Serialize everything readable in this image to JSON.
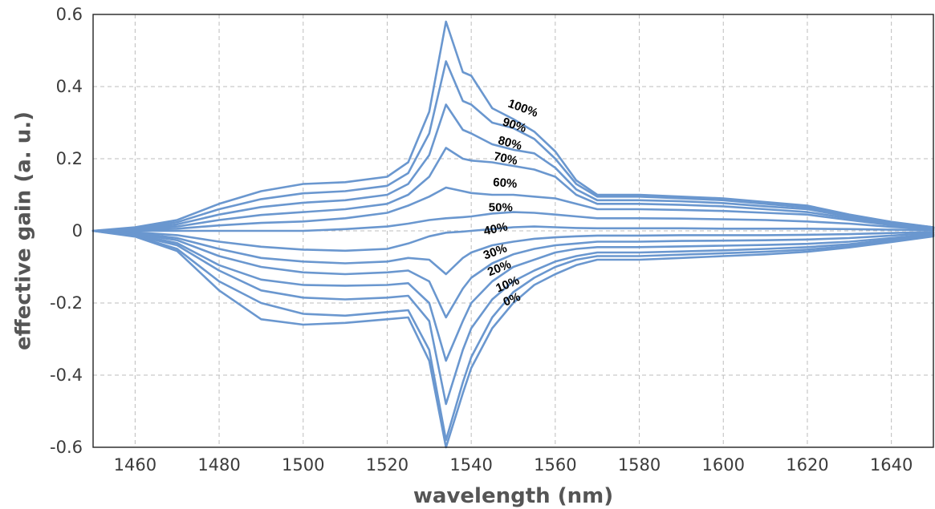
{
  "chart_data": {
    "type": "line",
    "title": "",
    "xlabel": "wavelength (nm)",
    "ylabel": "effective gain (a. u.)",
    "xlim": [
      1450,
      1650
    ],
    "ylim": [
      -0.6,
      0.6
    ],
    "xticks": [
      1460,
      1480,
      1500,
      1520,
      1540,
      1560,
      1580,
      1600,
      1620,
      1640
    ],
    "yticks": [
      -0.6,
      -0.4,
      -0.2,
      0,
      0.2,
      0.4,
      0.6
    ],
    "ytick_labels": [
      "-0.6",
      "-0.4",
      "-0.2",
      "0",
      "0.2",
      "0.4",
      "0.6"
    ],
    "grid": true,
    "line_color": "#6a97cf",
    "x": [
      1450,
      1460,
      1470,
      1480,
      1490,
      1500,
      1510,
      1520,
      1525,
      1530,
      1534,
      1538,
      1540,
      1545,
      1550,
      1555,
      1560,
      1565,
      1570,
      1580,
      1590,
      1600,
      1610,
      1620,
      1630,
      1640,
      1650
    ],
    "series": [
      {
        "name": "100%",
        "values": [
          0.0,
          0.01,
          0.03,
          0.075,
          0.11,
          0.13,
          0.135,
          0.15,
          0.19,
          0.33,
          0.58,
          0.44,
          0.43,
          0.34,
          0.31,
          0.275,
          0.22,
          0.14,
          0.1,
          0.1,
          0.095,
          0.09,
          0.08,
          0.07,
          0.045,
          0.025,
          0.01
        ]
      },
      {
        "name": "90%",
        "values": [
          0.0,
          0.008,
          0.024,
          0.06,
          0.088,
          0.104,
          0.11,
          0.125,
          0.16,
          0.27,
          0.47,
          0.36,
          0.35,
          0.3,
          0.285,
          0.255,
          0.2,
          0.13,
          0.095,
          0.095,
          0.09,
          0.085,
          0.075,
          0.065,
          0.042,
          0.023,
          0.01
        ]
      },
      {
        "name": "80%",
        "values": [
          0.0,
          0.006,
          0.018,
          0.045,
          0.066,
          0.078,
          0.085,
          0.1,
          0.13,
          0.21,
          0.35,
          0.28,
          0.27,
          0.24,
          0.225,
          0.215,
          0.175,
          0.115,
          0.085,
          0.085,
          0.082,
          0.077,
          0.068,
          0.06,
          0.039,
          0.021,
          0.009
        ]
      },
      {
        "name": "70%",
        "values": [
          0.0,
          0.004,
          0.012,
          0.03,
          0.044,
          0.052,
          0.06,
          0.075,
          0.1,
          0.15,
          0.23,
          0.2,
          0.195,
          0.19,
          0.18,
          0.17,
          0.15,
          0.1,
          0.075,
          0.075,
          0.072,
          0.068,
          0.06,
          0.052,
          0.035,
          0.019,
          0.008
        ]
      },
      {
        "name": "60%",
        "values": [
          0.0,
          0.002,
          0.006,
          0.015,
          0.022,
          0.026,
          0.035,
          0.05,
          0.07,
          0.095,
          0.12,
          0.11,
          0.105,
          0.1,
          0.1,
          0.095,
          0.09,
          0.075,
          0.06,
          0.06,
          0.058,
          0.055,
          0.05,
          0.045,
          0.03,
          0.016,
          0.007
        ]
      },
      {
        "name": "50%",
        "values": [
          0.0,
          0.0,
          0.0,
          0.0,
          0.0,
          0.0,
          0.005,
          0.012,
          0.02,
          0.03,
          0.035,
          0.038,
          0.04,
          0.048,
          0.052,
          0.05,
          0.045,
          0.04,
          0.035,
          0.035,
          0.034,
          0.032,
          0.03,
          0.026,
          0.02,
          0.011,
          0.005
        ]
      },
      {
        "name": "40%",
        "values": [
          0.0,
          -0.004,
          -0.012,
          -0.03,
          -0.044,
          -0.052,
          -0.055,
          -0.05,
          -0.035,
          -0.015,
          -0.005,
          -0.002,
          0.0,
          0.005,
          0.01,
          0.012,
          0.01,
          0.008,
          0.007,
          0.007,
          0.007,
          0.006,
          0.006,
          0.006,
          0.005,
          0.003,
          0.002
        ]
      },
      {
        "name": "30%",
        "values": [
          0.0,
          -0.006,
          -0.02,
          -0.05,
          -0.075,
          -0.085,
          -0.09,
          -0.085,
          -0.075,
          -0.08,
          -0.12,
          -0.075,
          -0.06,
          -0.04,
          -0.03,
          -0.022,
          -0.018,
          -0.015,
          -0.013,
          -0.013,
          -0.012,
          -0.012,
          -0.012,
          -0.011,
          -0.009,
          -0.006,
          -0.003
        ]
      },
      {
        "name": "20%",
        "values": [
          0.0,
          -0.008,
          -0.026,
          -0.07,
          -0.1,
          -0.115,
          -0.12,
          -0.115,
          -0.11,
          -0.14,
          -0.24,
          -0.16,
          -0.13,
          -0.09,
          -0.065,
          -0.05,
          -0.04,
          -0.035,
          -0.03,
          -0.03,
          -0.028,
          -0.027,
          -0.026,
          -0.024,
          -0.02,
          -0.013,
          -0.006
        ]
      },
      {
        "name": "10%",
        "values": [
          0.0,
          -0.01,
          -0.034,
          -0.095,
          -0.135,
          -0.15,
          -0.152,
          -0.15,
          -0.145,
          -0.2,
          -0.36,
          -0.25,
          -0.2,
          -0.14,
          -0.1,
          -0.08,
          -0.06,
          -0.05,
          -0.045,
          -0.045,
          -0.043,
          -0.041,
          -0.039,
          -0.036,
          -0.03,
          -0.02,
          -0.009
        ]
      },
      {
        "name": "0%",
        "values": [
          0.0,
          -0.012,
          -0.04,
          -0.11,
          -0.165,
          -0.185,
          -0.19,
          -0.185,
          -0.18,
          -0.25,
          -0.48,
          -0.33,
          -0.27,
          -0.19,
          -0.14,
          -0.11,
          -0.085,
          -0.07,
          -0.06,
          -0.06,
          -0.057,
          -0.054,
          -0.05,
          -0.045,
          -0.037,
          -0.024,
          -0.011
        ]
      },
      {
        "name": "",
        "values": [
          0.0,
          -0.014,
          -0.05,
          -0.14,
          -0.2,
          -0.23,
          -0.235,
          -0.225,
          -0.22,
          -0.33,
          -0.58,
          -0.42,
          -0.35,
          -0.24,
          -0.17,
          -0.13,
          -0.1,
          -0.08,
          -0.07,
          -0.07,
          -0.066,
          -0.062,
          -0.058,
          -0.052,
          -0.042,
          -0.028,
          -0.013
        ]
      },
      {
        "name": "",
        "values": [
          0.0,
          -0.016,
          -0.056,
          -0.165,
          -0.245,
          -0.26,
          -0.255,
          -0.245,
          -0.24,
          -0.36,
          -0.6,
          -0.45,
          -0.38,
          -0.27,
          -0.2,
          -0.15,
          -0.12,
          -0.095,
          -0.08,
          -0.08,
          -0.075,
          -0.07,
          -0.065,
          -0.058,
          -0.046,
          -0.031,
          -0.015
        ]
      }
    ],
    "annotations": [
      {
        "text": "100%",
        "x": 1552,
        "y": 0.33,
        "rotate": 20
      },
      {
        "text": "90%",
        "x": 1550,
        "y": 0.283,
        "rotate": 18
      },
      {
        "text": "80%",
        "x": 1549,
        "y": 0.233,
        "rotate": 15
      },
      {
        "text": "70%",
        "x": 1548,
        "y": 0.19,
        "rotate": 12
      },
      {
        "text": "60%",
        "x": 1548,
        "y": 0.122,
        "rotate": 4
      },
      {
        "text": "50%",
        "x": 1547,
        "y": 0.055,
        "rotate": 0
      },
      {
        "text": "40%",
        "x": 1546,
        "y": -0.005,
        "rotate": -12
      },
      {
        "text": "30%",
        "x": 1546,
        "y": -0.068,
        "rotate": -20
      },
      {
        "text": "20%",
        "x": 1547,
        "y": -0.113,
        "rotate": -22
      },
      {
        "text": "10%",
        "x": 1549,
        "y": -0.158,
        "rotate": -22
      },
      {
        "text": "0%",
        "x": 1550,
        "y": -0.2,
        "rotate": -22
      }
    ]
  }
}
